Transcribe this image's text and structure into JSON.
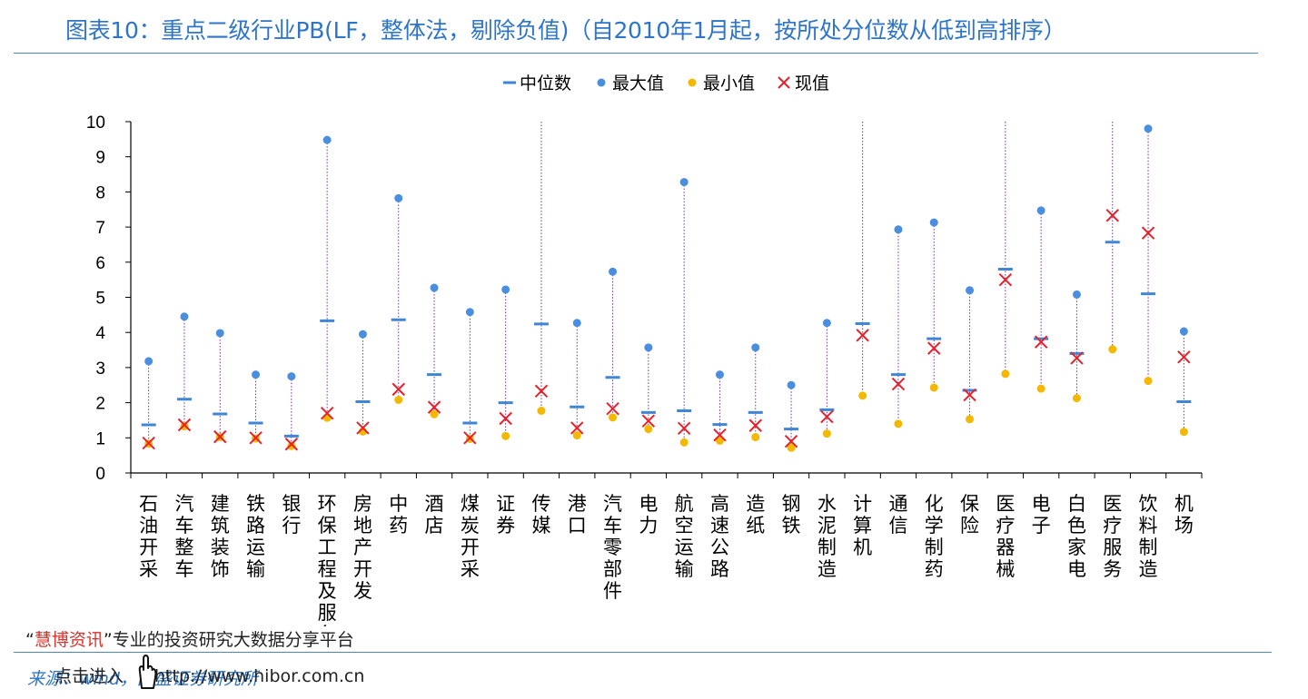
{
  "title": "图表10：重点二级行业PB(LF，整体法，剔除负值)（自2010年1月起，按所处分位数从低到高排序）",
  "footer": {
    "quote_open": "“",
    "brand": "慧博资讯",
    "quote_close": "”",
    "tagline": "专业的投资研究大数据分享平台",
    "source": "来源：wind，国盛证券研究所",
    "link": "点击进入",
    "url": "http://www.hibor.com.cn"
  },
  "chart_data": {
    "type": "scatter",
    "title": "",
    "xlabel": "",
    "ylabel": "",
    "ylim": [
      0,
      10
    ],
    "yticks": [
      0,
      1,
      2,
      3,
      4,
      5,
      6,
      7,
      8,
      9,
      10
    ],
    "grid": false,
    "legend_position": "top-center",
    "colors": {
      "median": "#3f86d6",
      "max": "#4a8ee0",
      "min": "#f5b800",
      "current": "#e8202a",
      "range_line": "#7030a0"
    },
    "categories": [
      "石油开采",
      "汽车整车",
      "建筑装饰",
      "铁路运输",
      "银行",
      "环保工程及服务",
      "房地产开发",
      "中药",
      "酒店",
      "煤炭开采",
      "证券",
      "传媒",
      "港口",
      "汽车零部件",
      "电力",
      "航空运输",
      "高速公路",
      "造纸",
      "钢铁",
      "水泥制造",
      "计算机",
      "通信",
      "化学制药",
      "保险",
      "医疗器械",
      "电子",
      "白色家电",
      "医疗服务",
      "饮料制造",
      "机场"
    ],
    "series": [
      {
        "name": "中位数",
        "marker": "dash",
        "values": [
          1.37,
          2.1,
          1.68,
          1.42,
          1.05,
          4.33,
          2.03,
          4.36,
          2.8,
          1.42,
          2.0,
          4.24,
          1.88,
          2.72,
          1.72,
          1.77,
          1.38,
          1.72,
          1.25,
          1.8,
          4.25,
          2.8,
          3.82,
          2.35,
          5.8,
          3.82,
          3.4,
          6.57,
          5.1,
          2.03
        ]
      },
      {
        "name": "最大值",
        "marker": "circle",
        "values": [
          3.18,
          4.45,
          3.98,
          2.8,
          2.75,
          9.48,
          3.95,
          7.82,
          5.27,
          4.58,
          5.22,
          null,
          4.27,
          5.73,
          3.57,
          8.28,
          2.8,
          3.57,
          2.5,
          4.27,
          null,
          6.93,
          7.13,
          5.2,
          null,
          7.47,
          5.08,
          null,
          9.8,
          4.03
        ]
      },
      {
        "name": "最小值",
        "marker": "circle",
        "values": [
          0.83,
          1.33,
          1.02,
          0.98,
          0.77,
          1.57,
          1.18,
          2.08,
          1.67,
          0.97,
          1.05,
          1.77,
          1.07,
          1.58,
          1.25,
          0.87,
          0.92,
          1.02,
          0.72,
          1.12,
          2.2,
          1.4,
          2.43,
          1.53,
          2.82,
          2.4,
          2.13,
          3.52,
          2.62,
          1.17
        ]
      },
      {
        "name": "现值",
        "marker": "x",
        "values": [
          0.85,
          1.37,
          1.03,
          1.0,
          0.82,
          1.7,
          1.28,
          2.38,
          1.87,
          1.0,
          1.55,
          2.33,
          1.28,
          1.83,
          1.48,
          1.27,
          1.08,
          1.35,
          0.9,
          1.6,
          3.92,
          2.53,
          3.55,
          2.22,
          5.5,
          3.73,
          3.27,
          7.33,
          6.83,
          3.3
        ]
      }
    ]
  }
}
